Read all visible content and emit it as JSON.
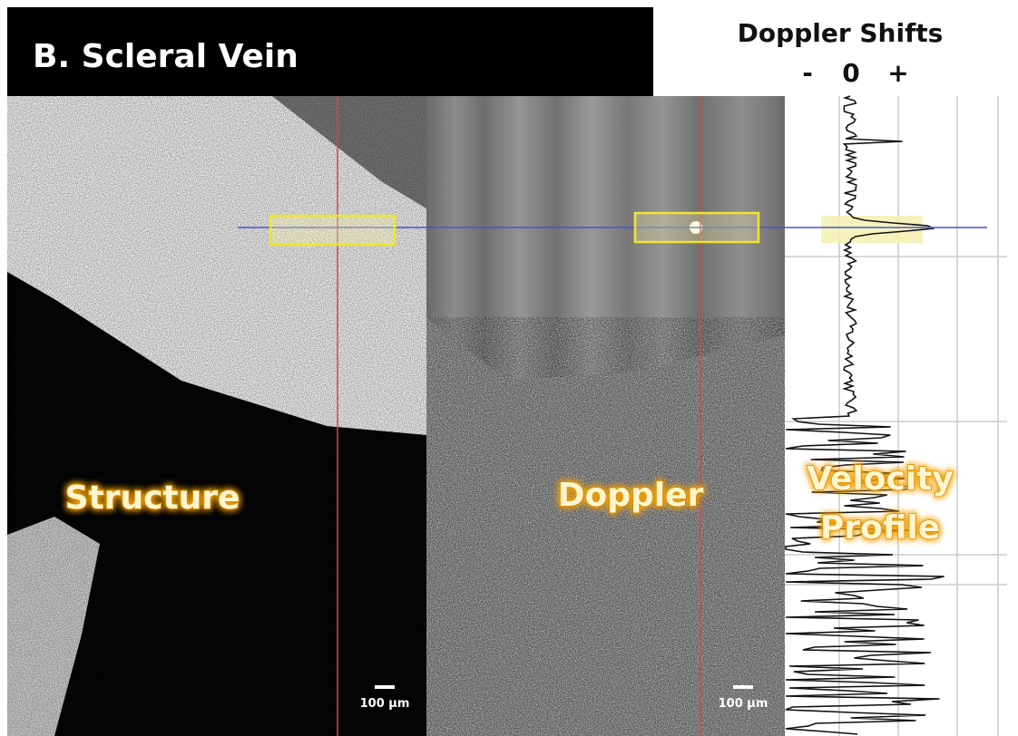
{
  "header": {
    "title": "B. Scleral Vein"
  },
  "legend": {
    "title": "Doppler Shifts",
    "minus": "-",
    "zero": "0",
    "plus": "+"
  },
  "panels": {
    "structure": {
      "label": "Structure",
      "scale_bar": "100 µm"
    },
    "doppler": {
      "label": "Doppler",
      "scale_bar": "100 µm"
    },
    "velocity": {
      "label_lines": [
        "Velocity",
        "Profile"
      ]
    }
  }
}
